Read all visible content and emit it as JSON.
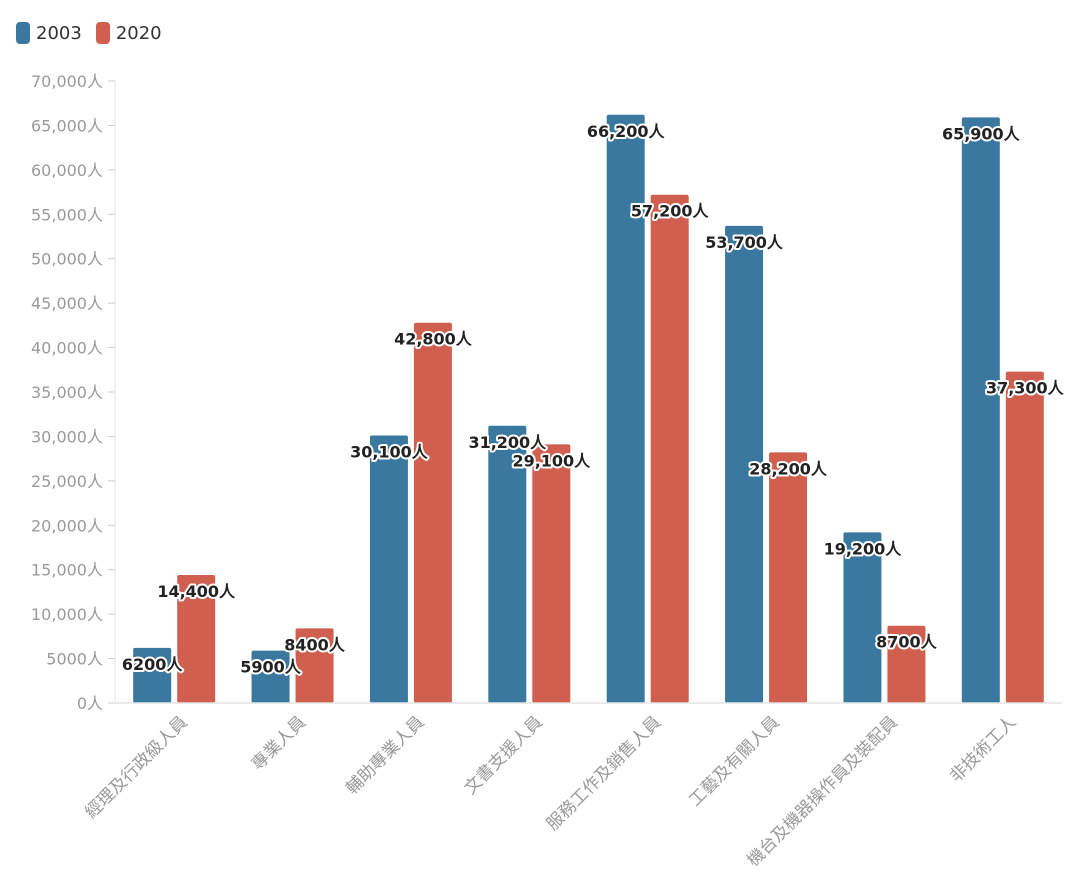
{
  "chart_data": {
    "type": "bar",
    "categories": [
      "經理及行政級人員",
      "專業人員",
      "輔助專業人員",
      "文書支援人員",
      "服務工作及銷售人員",
      "工藝及有關人員",
      "機台及機器操作員及裝配員",
      "非技術工人"
    ],
    "series": [
      {
        "name": "2003",
        "color": "#3a78a0",
        "values": [
          6200,
          5900,
          30100,
          31200,
          66200,
          53700,
          19200,
          65900
        ],
        "labels": [
          "6200人",
          "5900人",
          "30,100人",
          "31,200人",
          "66,200人",
          "53,700人",
          "19,200人",
          "65,900人"
        ]
      },
      {
        "name": "2020",
        "color": "#d05f4f",
        "values": [
          14400,
          8400,
          42800,
          29100,
          57200,
          28200,
          8700,
          37300
        ],
        "labels": [
          "14,400人",
          "8400人",
          "42,800人",
          "29,100人",
          "57,200人",
          "28,200人",
          "8700人",
          "37,300人"
        ]
      }
    ],
    "ylim": [
      0,
      70000
    ],
    "yticks": [
      0,
      5000,
      10000,
      15000,
      20000,
      25000,
      30000,
      35000,
      40000,
      45000,
      50000,
      55000,
      60000,
      65000,
      70000
    ],
    "ytick_labels": [
      "0人",
      "5000人",
      "10,000人",
      "15,000人",
      "20,000人",
      "25,000人",
      "30,000人",
      "35,000人",
      "40,000人",
      "45,000人",
      "50,000人",
      "55,000人",
      "60,000人",
      "65,000人",
      "70,000人"
    ],
    "grid": false,
    "legend_position": "top-left"
  }
}
